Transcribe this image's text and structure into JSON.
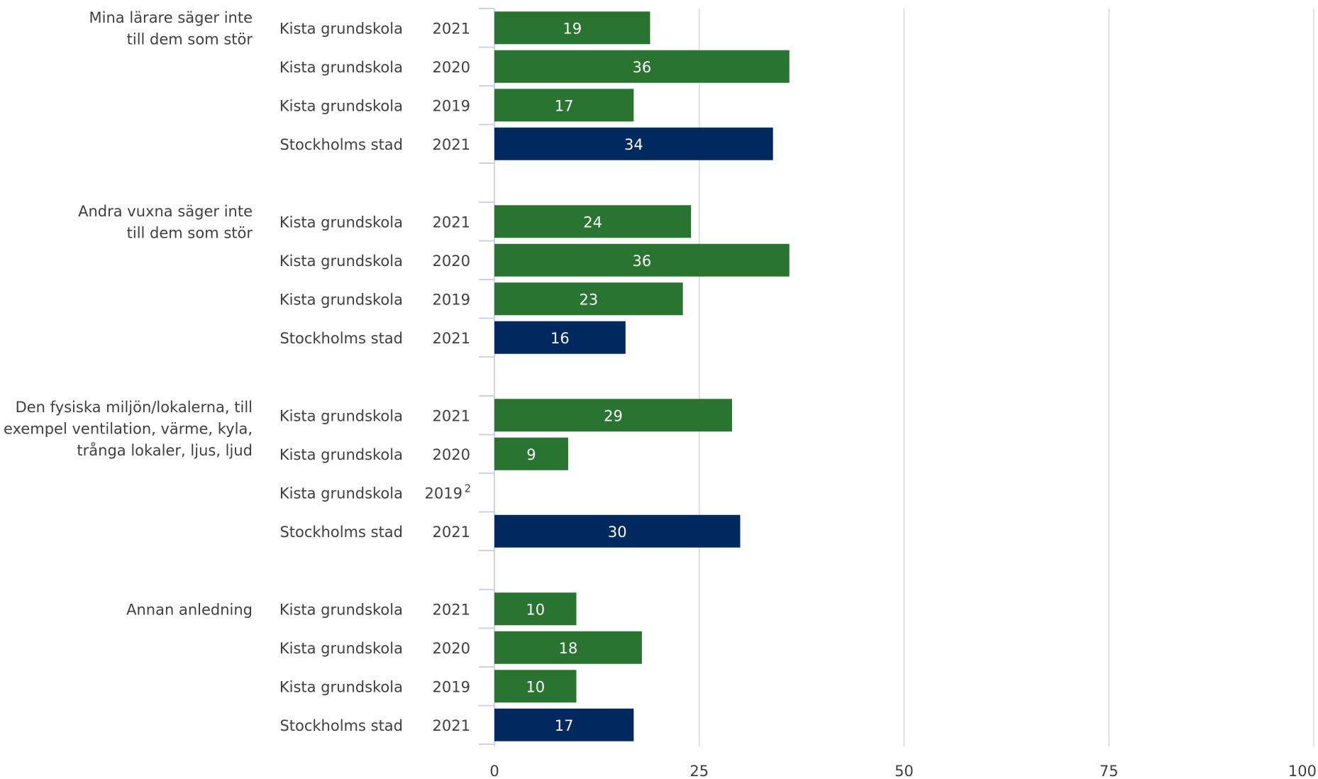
{
  "chart_data": {
    "type": "bar",
    "orientation": "horizontal",
    "xlim": [
      0,
      100
    ],
    "xticks": [
      "0",
      "25",
      "50",
      "75",
      "100"
    ],
    "grid": true,
    "colors": {
      "Kista grundskola": "#2a7432",
      "Stockholms stad": "#00295f"
    },
    "groups": [
      {
        "label": [
          "Mina lärare säger inte",
          "till dem som stör"
        ],
        "rows": [
          {
            "unit": "Kista grundskola",
            "year": "2021",
            "value": 19,
            "label": "19"
          },
          {
            "unit": "Kista grundskola",
            "year": "2020",
            "value": 36,
            "label": "36"
          },
          {
            "unit": "Kista grundskola",
            "year": "2019",
            "value": 17,
            "label": "17"
          },
          {
            "unit": "Stockholms stad",
            "year": "2021",
            "value": 34,
            "label": "34"
          }
        ]
      },
      {
        "label": [
          "Andra vuxna säger inte",
          "till dem som stör"
        ],
        "rows": [
          {
            "unit": "Kista grundskola",
            "year": "2021",
            "value": 24,
            "label": "24"
          },
          {
            "unit": "Kista grundskola",
            "year": "2020",
            "value": 36,
            "label": "36"
          },
          {
            "unit": "Kista grundskola",
            "year": "2019",
            "value": 23,
            "label": "23"
          },
          {
            "unit": "Stockholms stad",
            "year": "2021",
            "value": 16,
            "label": "16"
          }
        ]
      },
      {
        "label": [
          "Den fysiska miljön/lokalerna, till",
          "exempel ventilation, värme, kyla,",
          "trånga lokaler, ljus, ljud"
        ],
        "rows": [
          {
            "unit": "Kista grundskola",
            "year": "2021",
            "value": 29,
            "label": "29"
          },
          {
            "unit": "Kista grundskola",
            "year": "2020",
            "value": 9,
            "label": "9"
          },
          {
            "unit": "Kista grundskola",
            "year": "2019",
            "sup": "2",
            "value": null,
            "label": ""
          },
          {
            "unit": "Stockholms stad",
            "year": "2021",
            "value": 30,
            "label": "30"
          }
        ]
      },
      {
        "label": [
          "Annan anledning"
        ],
        "rows": [
          {
            "unit": "Kista grundskola",
            "year": "2021",
            "value": 10,
            "label": "10"
          },
          {
            "unit": "Kista grundskola",
            "year": "2020",
            "value": 18,
            "label": "18"
          },
          {
            "unit": "Kista grundskola",
            "year": "2019",
            "value": 10,
            "label": "10"
          },
          {
            "unit": "Stockholms stad",
            "year": "2021",
            "value": 17,
            "label": "17"
          }
        ]
      }
    ]
  }
}
